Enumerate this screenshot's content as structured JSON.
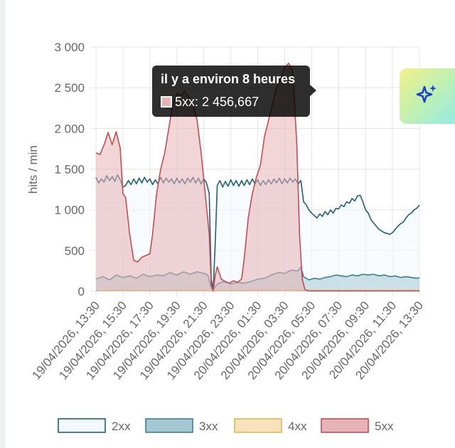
{
  "chart_data": {
    "type": "area",
    "ylabel": "hits / min",
    "ylim": [
      0,
      3000
    ],
    "y_ticks": [
      0,
      500,
      1000,
      1500,
      2000,
      2500,
      3000
    ],
    "y_tick_labels": [
      "0",
      "500",
      "1 000",
      "1 500",
      "2 000",
      "2 500",
      "3 000"
    ],
    "x_range": [
      0,
      24
    ],
    "x_tick_values": [
      0,
      2,
      4,
      6,
      8,
      10,
      12,
      14,
      16,
      18,
      20,
      22,
      24
    ],
    "x_tick_labels": [
      "19/04/2026, 13:30",
      "19/04/2026, 15:30",
      "19/04/2026, 17:30",
      "19/04/2026, 19:30",
      "19/04/2026, 21:30",
      "19/04/2026, 23:30",
      "20/04/2026, 01:30",
      "20/04/2026, 03:30",
      "20/04/2026, 05:30",
      "20/04/2026, 07:30",
      "20/04/2026, 09:30",
      "20/04/2026, 11:30",
      "20/04/2026, 13:30"
    ],
    "grid": true,
    "legend_position": "bottom",
    "series": [
      {
        "name": "2xx",
        "stroke": "#1f5f7a",
        "fill": "#f3f8fb",
        "points": [
          [
            0,
            1400
          ],
          [
            0.2,
            1330
          ],
          [
            0.4,
            1380
          ],
          [
            0.6,
            1340
          ],
          [
            0.8,
            1420
          ],
          [
            1.0,
            1360
          ],
          [
            1.2,
            1410
          ],
          [
            1.4,
            1350
          ],
          [
            1.6,
            1430
          ],
          [
            1.8,
            1370
          ],
          [
            2.0,
            1280
          ],
          [
            2.2,
            1300
          ],
          [
            2.4,
            1360
          ],
          [
            2.6,
            1310
          ],
          [
            2.8,
            1380
          ],
          [
            3.0,
            1320
          ],
          [
            3.2,
            1390
          ],
          [
            3.4,
            1330
          ],
          [
            3.6,
            1400
          ],
          [
            3.8,
            1340
          ],
          [
            4.0,
            1380
          ],
          [
            4.2,
            1310
          ],
          [
            4.4,
            1370
          ],
          [
            4.6,
            1320
          ],
          [
            4.8,
            1400
          ],
          [
            5.0,
            1330
          ],
          [
            5.2,
            1390
          ],
          [
            5.4,
            1340
          ],
          [
            5.6,
            1380
          ],
          [
            5.8,
            1320
          ],
          [
            6.0,
            1390
          ],
          [
            6.2,
            1330
          ],
          [
            6.4,
            1380
          ],
          [
            6.6,
            1320
          ],
          [
            6.8,
            1390
          ],
          [
            7.0,
            1340
          ],
          [
            7.2,
            1400
          ],
          [
            7.4,
            1330
          ],
          [
            7.6,
            1390
          ],
          [
            7.8,
            1320
          ],
          [
            8.0,
            1380
          ],
          [
            8.2,
            1330
          ],
          [
            8.4,
            1200
          ],
          [
            8.55,
            150
          ],
          [
            8.7,
            20
          ],
          [
            8.85,
            600
          ],
          [
            9.0,
            1300
          ],
          [
            9.2,
            1360
          ],
          [
            9.4,
            1280
          ],
          [
            9.6,
            1350
          ],
          [
            9.8,
            1290
          ],
          [
            10.0,
            1370
          ],
          [
            10.2,
            1300
          ],
          [
            10.4,
            1360
          ],
          [
            10.6,
            1290
          ],
          [
            10.8,
            1360
          ],
          [
            11.0,
            1300
          ],
          [
            11.2,
            1370
          ],
          [
            11.4,
            1310
          ],
          [
            11.6,
            1380
          ],
          [
            11.8,
            1320
          ],
          [
            12.0,
            1370
          ],
          [
            12.2,
            1300
          ],
          [
            12.4,
            1360
          ],
          [
            12.6,
            1310
          ],
          [
            12.8,
            1370
          ],
          [
            13.0,
            1320
          ],
          [
            13.2,
            1380
          ],
          [
            13.4,
            1330
          ],
          [
            13.6,
            1390
          ],
          [
            13.8,
            1320
          ],
          [
            14.0,
            1380
          ],
          [
            14.2,
            1330
          ],
          [
            14.4,
            1390
          ],
          [
            14.6,
            1340
          ],
          [
            14.8,
            1380
          ],
          [
            15.0,
            1320
          ],
          [
            15.2,
            1360
          ],
          [
            15.4,
            1100
          ],
          [
            15.6,
            1060
          ],
          [
            15.8,
            1000
          ],
          [
            16.0,
            960
          ],
          [
            16.2,
            930
          ],
          [
            16.4,
            900
          ],
          [
            16.6,
            950
          ],
          [
            16.8,
            920
          ],
          [
            17.0,
            980
          ],
          [
            17.2,
            940
          ],
          [
            17.4,
            1000
          ],
          [
            17.6,
            960
          ],
          [
            17.8,
            1020
          ],
          [
            18.0,
            1010
          ],
          [
            18.2,
            1060
          ],
          [
            18.4,
            1040
          ],
          [
            18.6,
            1100
          ],
          [
            18.8,
            1080
          ],
          [
            19.0,
            1140
          ],
          [
            19.2,
            1110
          ],
          [
            19.4,
            1170
          ],
          [
            19.6,
            1180
          ],
          [
            19.8,
            1100
          ],
          [
            20.0,
            1000
          ],
          [
            20.2,
            960
          ],
          [
            20.4,
            880
          ],
          [
            20.6,
            840
          ],
          [
            20.8,
            800
          ],
          [
            21.0,
            760
          ],
          [
            21.2,
            740
          ],
          [
            21.4,
            720
          ],
          [
            21.6,
            710
          ],
          [
            21.8,
            700
          ],
          [
            22.0,
            720
          ],
          [
            22.2,
            760
          ],
          [
            22.4,
            800
          ],
          [
            22.6,
            830
          ],
          [
            22.8,
            850
          ],
          [
            23.0,
            900
          ],
          [
            23.2,
            940
          ],
          [
            23.4,
            960
          ],
          [
            23.6,
            1000
          ],
          [
            23.8,
            1020
          ],
          [
            24.0,
            1060
          ]
        ]
      },
      {
        "name": "3xx",
        "stroke": "#3d7f96",
        "fill": "#a6c8d3",
        "points": [
          [
            0,
            150
          ],
          [
            0.5,
            180
          ],
          [
            1,
            140
          ],
          [
            1.5,
            200
          ],
          [
            2,
            170
          ],
          [
            2.5,
            190
          ],
          [
            3,
            160
          ],
          [
            3.5,
            210
          ],
          [
            4,
            180
          ],
          [
            4.5,
            200
          ],
          [
            5,
            190
          ],
          [
            5.5,
            230
          ],
          [
            6,
            200
          ],
          [
            6.5,
            240
          ],
          [
            7,
            210
          ],
          [
            7.5,
            240
          ],
          [
            8,
            220
          ],
          [
            8.3,
            200
          ],
          [
            8.55,
            40
          ],
          [
            8.7,
            10
          ],
          [
            8.85,
            60
          ],
          [
            9.1,
            100
          ],
          [
            9.5,
            120
          ],
          [
            10,
            90
          ],
          [
            10.5,
            110
          ],
          [
            11,
            100
          ],
          [
            11.5,
            120
          ],
          [
            12,
            150
          ],
          [
            12.5,
            160
          ],
          [
            13,
            200
          ],
          [
            13.5,
            230
          ],
          [
            14,
            220
          ],
          [
            14.5,
            260
          ],
          [
            15,
            250
          ],
          [
            15.2,
            300
          ],
          [
            15.4,
            180
          ],
          [
            15.8,
            140
          ],
          [
            16.2,
            160
          ],
          [
            16.6,
            150
          ],
          [
            17,
            170
          ],
          [
            17.4,
            180
          ],
          [
            17.8,
            200
          ],
          [
            18.2,
            190
          ],
          [
            18.6,
            180
          ],
          [
            19,
            200
          ],
          [
            19.4,
            190
          ],
          [
            19.8,
            210
          ],
          [
            20.2,
            200
          ],
          [
            20.6,
            210
          ],
          [
            21,
            190
          ],
          [
            21.4,
            200
          ],
          [
            21.8,
            180
          ],
          [
            22.2,
            190
          ],
          [
            22.6,
            170
          ],
          [
            23,
            180
          ],
          [
            23.4,
            170
          ],
          [
            23.8,
            160
          ],
          [
            24,
            165
          ]
        ]
      },
      {
        "name": "4xx",
        "stroke": "#e3b558",
        "fill": "#f6e2bb",
        "points": [
          [
            0,
            10
          ],
          [
            2,
            12
          ],
          [
            4,
            10
          ],
          [
            6,
            12
          ],
          [
            8,
            14
          ],
          [
            8.7,
            0
          ],
          [
            9,
            10
          ],
          [
            12,
            12
          ],
          [
            15,
            14
          ],
          [
            15.4,
            8
          ],
          [
            18,
            8
          ],
          [
            21,
            8
          ],
          [
            24,
            8
          ]
        ]
      },
      {
        "name": "5xx",
        "stroke": "#c24e52",
        "fill": "#e6b3b7",
        "points": [
          [
            0,
            1700
          ],
          [
            0.3,
            1680
          ],
          [
            0.6,
            1800
          ],
          [
            0.9,
            1950
          ],
          [
            1.2,
            1800
          ],
          [
            1.5,
            1960
          ],
          [
            1.8,
            1760
          ],
          [
            2.0,
            1200
          ],
          [
            2.2,
            1150
          ],
          [
            2.5,
            700
          ],
          [
            2.8,
            380
          ],
          [
            3.1,
            360
          ],
          [
            3.4,
            420
          ],
          [
            3.7,
            440
          ],
          [
            4.0,
            460
          ],
          [
            4.2,
            700
          ],
          [
            4.5,
            1200
          ],
          [
            4.8,
            1500
          ],
          [
            5.1,
            1700
          ],
          [
            5.4,
            2000
          ],
          [
            5.7,
            2300
          ],
          [
            6.0,
            2430
          ],
          [
            6.3,
            2400
          ],
          [
            6.6,
            2460
          ],
          [
            6.9,
            2380
          ],
          [
            7.2,
            2300
          ],
          [
            7.5,
            2100
          ],
          [
            7.8,
            1700
          ],
          [
            8.1,
            1200
          ],
          [
            8.4,
            700
          ],
          [
            8.55,
            80
          ],
          [
            8.7,
            10
          ],
          [
            8.85,
            200
          ],
          [
            9.0,
            300
          ],
          [
            9.3,
            150
          ],
          [
            9.6,
            120
          ],
          [
            9.9,
            100
          ],
          [
            10.2,
            130
          ],
          [
            10.5,
            110
          ],
          [
            10.8,
            150
          ],
          [
            11.0,
            400
          ],
          [
            11.3,
            900
          ],
          [
            11.6,
            1200
          ],
          [
            11.9,
            1400
          ],
          [
            12.2,
            1550
          ],
          [
            12.5,
            1900
          ],
          [
            12.8,
            2100
          ],
          [
            13.1,
            2300
          ],
          [
            13.4,
            2500
          ],
          [
            13.7,
            2600
          ],
          [
            14.0,
            2750
          ],
          [
            14.3,
            2800
          ],
          [
            14.6,
            2700
          ],
          [
            14.9,
            1800
          ],
          [
            15.1,
            700
          ],
          [
            15.3,
            150
          ],
          [
            15.5,
            20
          ],
          [
            15.8,
            5
          ],
          [
            24,
            5
          ]
        ]
      }
    ],
    "tooltip": {
      "title": "il y a environ 8 heures",
      "label": "5xx: 2 456,667"
    }
  },
  "ai_button": {
    "icon": "sparkle-icon"
  }
}
